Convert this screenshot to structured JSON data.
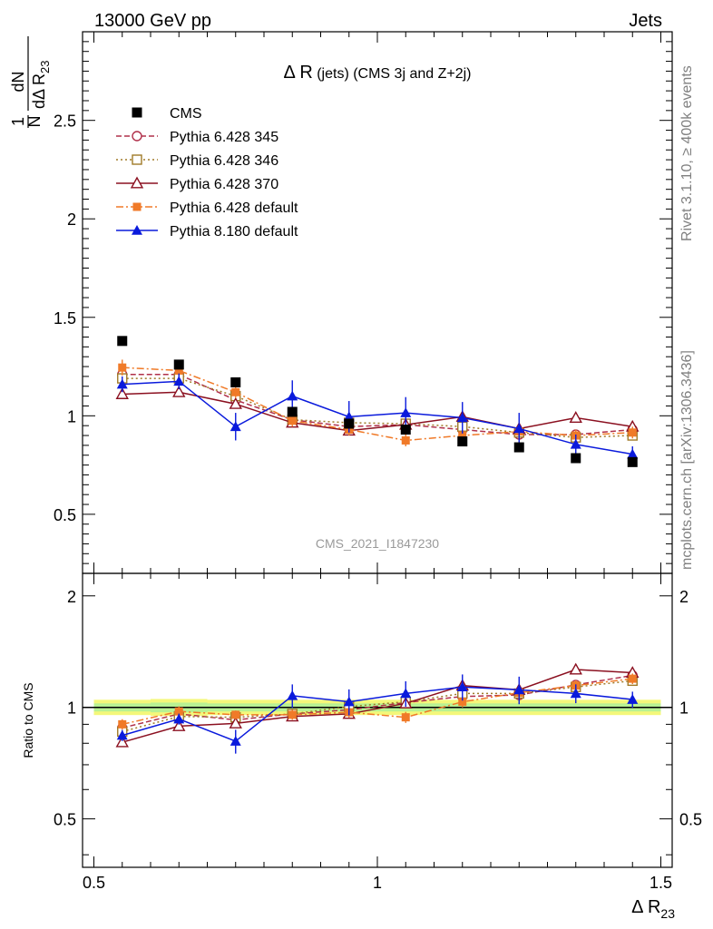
{
  "header": {
    "left": "13000 GeV pp",
    "right": "Jets"
  },
  "side": {
    "rivet": "Rivet 3.1.10, ≥ 400k events",
    "mcplots": "mcplots.cern.ch [arXiv:1306.3436]"
  },
  "chart_data": {
    "type": "line",
    "title": "Δ R (jets) (CMS 3j and Z+2j)",
    "title_main": "Δ R",
    "title_rest": " (jets) (CMS 3j and Z+2j)",
    "watermark": "CMS_2021_I1847230",
    "xlabel": "Δ R",
    "xlabel_sub": "23",
    "ylabel": {
      "numerator": "1",
      "fraction_left": "N",
      "dN": "dN",
      "denominator": "dΔ R",
      "denominator_sub": "23"
    },
    "ratio_ylabel": "Ratio to CMS",
    "xlim": [
      0.48,
      1.52
    ],
    "xticks": [
      0.5,
      1,
      1.5
    ],
    "xtick_labels": [
      "0.5",
      "1",
      "1.5"
    ],
    "main": {
      "ylim": [
        0.2,
        2.95
      ],
      "yticks": [
        0.5,
        1,
        1.5,
        2,
        2.5
      ],
      "ytick_labels": [
        "0.5",
        "1",
        "1.5",
        "2",
        "2.5"
      ]
    },
    "ratio": {
      "ylim": [
        0.37,
        2.3
      ],
      "yticks": [
        0.5,
        1,
        2
      ],
      "ytick_labels": [
        "0.5",
        "1",
        "2"
      ],
      "band": [
        {
          "x0": 0.5,
          "x1": 0.6,
          "lo": 0.975,
          "hi": 1.025
        },
        {
          "x0": 0.6,
          "x1": 0.7,
          "lo": 0.97,
          "hi": 1.03
        },
        {
          "x0": 0.7,
          "x1": 0.8,
          "lo": 0.975,
          "hi": 1.025
        },
        {
          "x0": 0.8,
          "x1": 0.9,
          "lo": 0.975,
          "hi": 1.025
        },
        {
          "x0": 0.9,
          "x1": 1.0,
          "lo": 0.975,
          "hi": 1.025
        },
        {
          "x0": 1.0,
          "x1": 1.1,
          "lo": 0.975,
          "hi": 1.025
        },
        {
          "x0": 1.1,
          "x1": 1.2,
          "lo": 0.975,
          "hi": 1.025
        },
        {
          "x0": 1.2,
          "x1": 1.3,
          "lo": 0.975,
          "hi": 1.025
        },
        {
          "x0": 1.3,
          "x1": 1.4,
          "lo": 0.975,
          "hi": 1.025
        },
        {
          "x0": 1.4,
          "x1": 1.5,
          "lo": 0.975,
          "hi": 1.025
        }
      ]
    },
    "x": [
      0.55,
      0.65,
      0.75,
      0.85,
      0.95,
      1.05,
      1.15,
      1.25,
      1.35,
      1.45
    ],
    "data": {
      "name": "CMS",
      "values": [
        1.38,
        1.26,
        1.17,
        1.02,
        0.96,
        0.93,
        0.87,
        0.84,
        0.785,
        0.765
      ]
    },
    "series": [
      {
        "name": "Pythia 6.428 345",
        "color": "#b0304a",
        "marker": "open-circle",
        "dash": "6,3",
        "values": [
          1.21,
          1.21,
          1.08,
          0.98,
          0.945,
          0.955,
          0.93,
          0.905,
          0.905,
          0.93
        ],
        "ratio": [
          0.88,
          0.96,
          0.925,
          0.96,
          0.985,
          1.03,
          1.07,
          1.08,
          1.15,
          1.22
        ]
      },
      {
        "name": "Pythia 6.428 346",
        "color": "#a07a28",
        "marker": "open-square",
        "dash": "2,3",
        "values": [
          1.19,
          1.19,
          1.1,
          0.98,
          0.965,
          0.96,
          0.945,
          0.915,
          0.89,
          0.9
        ],
        "ratio": [
          0.86,
          0.945,
          0.94,
          0.96,
          1.005,
          1.035,
          1.09,
          1.09,
          1.135,
          1.18
        ]
      },
      {
        "name": "Pythia 6.428 370",
        "color": "#8b1020",
        "marker": "open-triangle",
        "dash": "",
        "values": [
          1.11,
          1.12,
          1.06,
          0.965,
          0.925,
          0.955,
          0.995,
          0.935,
          0.99,
          0.945
        ],
        "ratio": [
          0.805,
          0.89,
          0.905,
          0.945,
          0.96,
          1.025,
          1.145,
          1.115,
          1.265,
          1.24
        ]
      },
      {
        "name": "Pythia 6.428 default",
        "color": "#f07a28",
        "marker": "filled-square",
        "dash": "8,3,2,3",
        "values": [
          1.245,
          1.23,
          1.12,
          0.975,
          0.93,
          0.875,
          0.9,
          0.92,
          0.9,
          0.915
        ],
        "ratio": [
          0.9,
          0.975,
          0.955,
          0.955,
          0.97,
          0.94,
          1.035,
          1.095,
          1.145,
          1.195
        ]
      },
      {
        "name": "Pythia 8.180 default",
        "color": "#0a1adc",
        "marker": "filled-triangle",
        "dash": "",
        "values": [
          1.16,
          1.175,
          0.945,
          1.1,
          0.995,
          1.015,
          0.99,
          0.935,
          0.855,
          0.805
        ],
        "ratio": [
          0.84,
          0.93,
          0.81,
          1.075,
          1.035,
          1.09,
          1.135,
          1.115,
          1.09,
          1.05
        ]
      }
    ],
    "errors": {
      "Pythia 8.180 default": [
        0.04,
        0.04,
        0.07,
        0.08,
        0.08,
        0.08,
        0.08,
        0.08,
        0.05,
        0.04
      ],
      "Pythia 6.428 default": [
        0.04,
        0.04,
        0.03,
        0.03,
        0.03,
        0.03,
        0.03,
        0.03,
        0.03,
        0.03
      ]
    }
  }
}
